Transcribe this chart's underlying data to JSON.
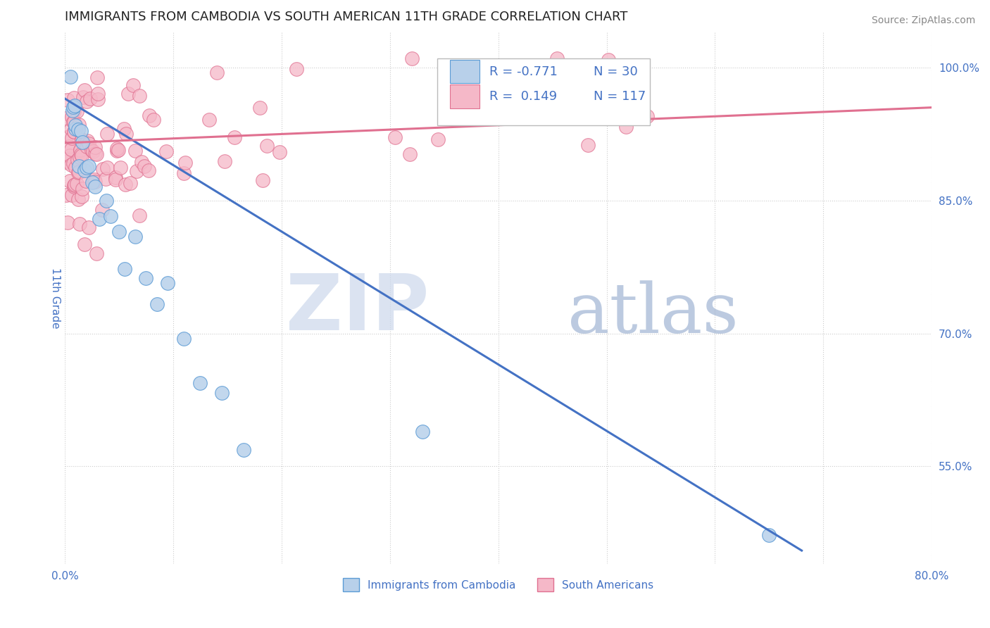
{
  "title": "IMMIGRANTS FROM CAMBODIA VS SOUTH AMERICAN 11TH GRADE CORRELATION CHART",
  "source": "Source: ZipAtlas.com",
  "ylabel": "11th Grade",
  "xlim": [
    0.0,
    0.8
  ],
  "ylim": [
    0.44,
    1.04
  ],
  "xticks": [
    0.0,
    0.1,
    0.2,
    0.3,
    0.4,
    0.5,
    0.6,
    0.7,
    0.8
  ],
  "xticklabels": [
    "0.0%",
    "",
    "",
    "",
    "",
    "",
    "",
    "",
    "80.0%"
  ],
  "yticks": [
    0.55,
    0.7,
    0.85,
    1.0
  ],
  "yticklabels": [
    "55.0%",
    "70.0%",
    "85.0%",
    "100.0%"
  ],
  "watermark_zip": "ZIP",
  "watermark_atlas": "atlas",
  "legend_R_blue": "-0.771",
  "legend_N_blue": "30",
  "legend_R_pink": "0.149",
  "legend_N_pink": "117",
  "blue_fill_color": "#b8d0ea",
  "pink_fill_color": "#f5b8c8",
  "blue_edge_color": "#5b9bd5",
  "pink_edge_color": "#e07090",
  "blue_line_color": "#4472c4",
  "pink_line_color": "#e07090",
  "title_color": "#222222",
  "axis_label_color": "#4472c4",
  "legend_text_color": "#4472c4",
  "grid_color": "#cccccc",
  "background_color": "#ffffff",
  "blue_line_x0": 0.0,
  "blue_line_y0": 0.965,
  "blue_line_x1": 0.68,
  "blue_line_y1": 0.455,
  "pink_line_x0": 0.0,
  "pink_line_y0": 0.915,
  "pink_line_x1": 0.8,
  "pink_line_y1": 0.955
}
